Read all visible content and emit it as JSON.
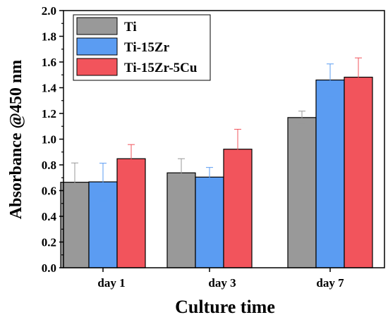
{
  "chart_data": {
    "type": "bar",
    "xlabel": "Culture time",
    "ylabel": "Absorbance @450 nm",
    "categories": [
      "day 1",
      "day 3",
      "day 7"
    ],
    "ylim": [
      0,
      2.0
    ],
    "yticks": [
      0.0,
      0.2,
      0.4,
      0.6,
      0.8,
      1.0,
      1.2,
      1.4,
      1.6,
      1.8,
      2.0
    ],
    "ytick_labels": [
      "0.0",
      "0.2",
      "0.4",
      "0.6",
      "0.8",
      "1.0",
      "1.2",
      "1.4",
      "1.6",
      "1.8",
      "2.0"
    ],
    "legend_position": "top-left",
    "grid": false,
    "series": [
      {
        "name": "Ti",
        "color": "#999999",
        "values": [
          0.665,
          0.738,
          1.168
        ],
        "errors": [
          0.15,
          0.11,
          0.05
        ]
      },
      {
        "name": "Ti-15Zr",
        "color": "#5b9cf2",
        "values": [
          0.668,
          0.705,
          1.46
        ],
        "errors": [
          0.145,
          0.075,
          0.125
        ]
      },
      {
        "name": "Ti-15Zr-5Cu",
        "color": "#f2545c",
        "values": [
          0.848,
          0.922,
          1.482
        ],
        "errors": [
          0.11,
          0.155,
          0.15
        ]
      }
    ]
  }
}
